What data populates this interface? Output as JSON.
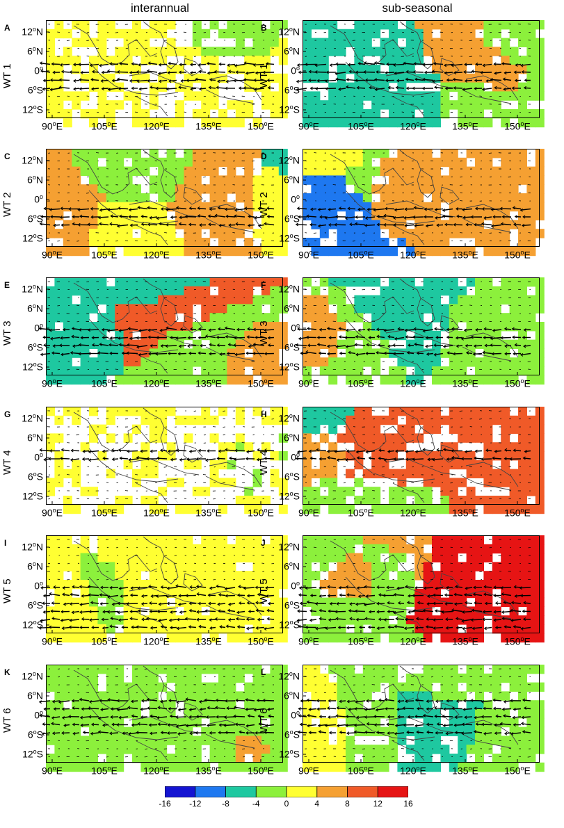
{
  "column_titles": [
    "interannual",
    "sub-seasonal"
  ],
  "panels": [
    {
      "letter": "A",
      "wt": "WT 1"
    },
    {
      "letter": "B",
      "wt": "WT 1"
    },
    {
      "letter": "C",
      "wt": "WT 2"
    },
    {
      "letter": "D",
      "wt": "WT 2"
    },
    {
      "letter": "E",
      "wt": "WT 3"
    },
    {
      "letter": "F",
      "wt": "WT 3"
    },
    {
      "letter": "G",
      "wt": "WT 4"
    },
    {
      "letter": "H",
      "wt": "WT 4"
    },
    {
      "letter": "I",
      "wt": "WT 5"
    },
    {
      "letter": "J",
      "wt": "WT 5"
    },
    {
      "letter": "K",
      "wt": "WT 6"
    },
    {
      "letter": "L",
      "wt": "WT 6"
    }
  ],
  "axes": {
    "x_ticks": [
      "90",
      "105",
      "120",
      "135",
      "150"
    ],
    "x_suffix": "E",
    "y_ticks": [
      {
        "num": "12",
        "hem": "N"
      },
      {
        "num": "6",
        "hem": "N"
      },
      {
        "num": "0",
        "hem": ""
      },
      {
        "num": "6",
        "hem": "S"
      },
      {
        "num": "12",
        "hem": "S"
      }
    ],
    "degree": "o"
  },
  "colorbar": {
    "ticks": [
      "-16",
      "-12",
      "-8",
      "-4",
      "0",
      "4",
      "8",
      "12",
      "16"
    ],
    "colors": [
      "#1414d2",
      "#1e78f0",
      "#1ec8a0",
      "#8cf03c",
      "#ffff32",
      "#f5a032",
      "#f05a28",
      "#e61414"
    ]
  },
  "panel_fields": {
    "A": {
      "base": 1,
      "regions": [
        {
          "c": 3,
          "x": [
            0,
            15
          ],
          "y": [
            -14,
            -3
          ]
        },
        {
          "c": 4,
          "x": [
            4,
            12
          ],
          "y": [
            -3,
            4
          ]
        },
        {
          "c": 4,
          "x": [
            18,
            40
          ],
          "y": [
            -12,
            -4
          ]
        },
        {
          "c": 1,
          "x": [
            45,
            55
          ],
          "y": [
            -2,
            0
          ]
        },
        {
          "c": 2,
          "x": [
            40,
            56
          ],
          "y": [
            0,
            7
          ]
        },
        {
          "c": 2,
          "x": [
            30,
            50
          ],
          "y": [
            7,
            15
          ]
        },
        {
          "c": 2,
          "x": [
            50,
            60
          ],
          "y": [
            12,
            15
          ]
        }
      ],
      "blank": [
        [
          0,
          0,
          19,
          12
        ]
      ]
    },
    "B": {
      "base": 1,
      "regions": [
        {
          "c": 4,
          "x": [
            0,
            60
          ],
          "y": [
            -15,
            15
          ]
        },
        {
          "c": 3,
          "x": [
            30,
            50
          ],
          "y": [
            -12,
            3
          ]
        },
        {
          "c": 2,
          "x": [
            20,
            40
          ],
          "y": [
            6,
            16
          ]
        },
        {
          "c": 3,
          "x": [
            0,
            60
          ],
          "y": [
            6,
            16
          ]
        },
        {
          "c": 2,
          "x": [
            34,
            55
          ],
          "y": [
            6,
            16
          ]
        },
        {
          "c": 4,
          "x": [
            0,
            10
          ],
          "y": [
            -14,
            8
          ]
        }
      ],
      "blank": [
        [
          25,
          -15,
          55,
          -4
        ]
      ]
    }
  }
}
